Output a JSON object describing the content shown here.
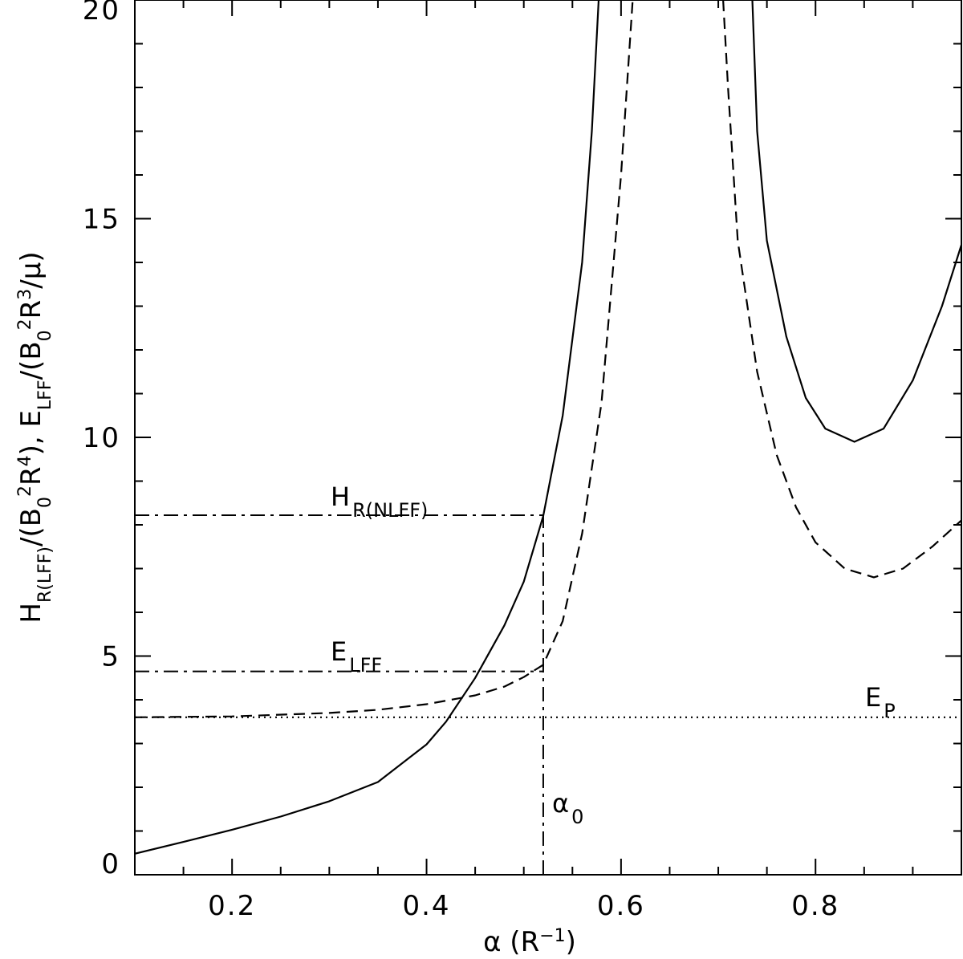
{
  "chart_data": {
    "type": "line",
    "xlim": [
      0.1,
      0.95
    ],
    "ylim": [
      0,
      20
    ],
    "xticks": {
      "major": [
        0.2,
        0.4,
        0.6,
        0.8
      ],
      "labels": [
        "0.2",
        "0.4",
        "0.6",
        "0.8"
      ]
    },
    "yticks": {
      "major": [
        0,
        5,
        10,
        15,
        20
      ],
      "labels": [
        "0",
        "5",
        "10",
        "15",
        "20"
      ]
    },
    "xlabel": {
      "main": "α",
      "unit": " (R",
      "sup": "−1",
      "close": ")"
    },
    "ylabel": {
      "parts": [
        {
          "t": "H"
        },
        {
          "t": "R(LFF)",
          "s": "sub"
        },
        {
          "t": "/(B"
        },
        {
          "t": "0",
          "s": "sub"
        },
        {
          "t": "2",
          "s": "sup"
        },
        {
          "t": "R"
        },
        {
          "t": "4",
          "s": "sup"
        },
        {
          "t": "),  E"
        },
        {
          "t": "LFF",
          "s": "sub"
        },
        {
          "t": "/(B"
        },
        {
          "t": "0",
          "s": "sub"
        },
        {
          "t": "2",
          "s": "sup"
        },
        {
          "t": "R"
        },
        {
          "t": "3",
          "s": "sup"
        },
        {
          "t": "/μ)"
        }
      ]
    },
    "series": [
      {
        "style": "solid",
        "points": [
          [
            0.1,
            0.48
          ],
          [
            0.15,
            0.75
          ],
          [
            0.2,
            1.03
          ],
          [
            0.25,
            1.33
          ],
          [
            0.3,
            1.68
          ],
          [
            0.35,
            2.12
          ],
          [
            0.4,
            2.98
          ],
          [
            0.42,
            3.5
          ],
          [
            0.45,
            4.5
          ],
          [
            0.48,
            5.7
          ],
          [
            0.5,
            6.7
          ],
          [
            0.52,
            8.2
          ],
          [
            0.54,
            10.5
          ],
          [
            0.56,
            14.0
          ],
          [
            0.57,
            17.0
          ],
          [
            0.577,
            20.0
          ]
        ]
      },
      {
        "style": "solid",
        "points": [
          [
            0.735,
            20.0
          ],
          [
            0.74,
            17.0
          ],
          [
            0.75,
            14.5
          ],
          [
            0.77,
            12.3
          ],
          [
            0.79,
            10.9
          ],
          [
            0.81,
            10.2
          ],
          [
            0.84,
            9.9
          ],
          [
            0.87,
            10.2
          ],
          [
            0.9,
            11.3
          ],
          [
            0.93,
            13.0
          ],
          [
            0.95,
            14.4
          ]
        ]
      },
      {
        "style": "dashed",
        "points": [
          [
            0.1,
            3.6
          ],
          [
            0.2,
            3.62
          ],
          [
            0.3,
            3.7
          ],
          [
            0.35,
            3.77
          ],
          [
            0.4,
            3.9
          ],
          [
            0.45,
            4.1
          ],
          [
            0.48,
            4.3
          ],
          [
            0.5,
            4.52
          ],
          [
            0.52,
            4.8
          ],
          [
            0.54,
            5.8
          ],
          [
            0.56,
            7.8
          ],
          [
            0.58,
            10.8
          ],
          [
            0.6,
            16.0
          ],
          [
            0.612,
            20.0
          ]
        ]
      },
      {
        "style": "dashed",
        "points": [
          [
            0.705,
            20.0
          ],
          [
            0.71,
            18.0
          ],
          [
            0.72,
            14.5
          ],
          [
            0.74,
            11.5
          ],
          [
            0.76,
            9.6
          ],
          [
            0.78,
            8.4
          ],
          [
            0.8,
            7.6
          ],
          [
            0.83,
            7.0
          ],
          [
            0.86,
            6.8
          ],
          [
            0.89,
            7.0
          ],
          [
            0.92,
            7.5
          ],
          [
            0.95,
            8.1
          ]
        ]
      }
    ],
    "reference_lines": [
      {
        "style": "dashdot",
        "y": 8.22,
        "x0": 0.1,
        "x1": 0.52
      },
      {
        "style": "dashdot",
        "y": 4.65,
        "x0": 0.1,
        "x1": 0.52
      },
      {
        "style": "dashdot",
        "x": 0.52,
        "y0": 0.0,
        "y1": 8.22
      },
      {
        "style": "dotted",
        "y": 3.6,
        "x0": 0.1,
        "x1": 0.95
      }
    ],
    "annotations": [
      {
        "id": "h-nlff",
        "base": "H",
        "sub": "R(NLFF)"
      },
      {
        "id": "e-lff",
        "base": "E",
        "sub": "LFF"
      },
      {
        "id": "e-p",
        "base": "E",
        "sub": "P"
      },
      {
        "id": "alpha0",
        "base": "α",
        "sub": "0"
      }
    ]
  }
}
